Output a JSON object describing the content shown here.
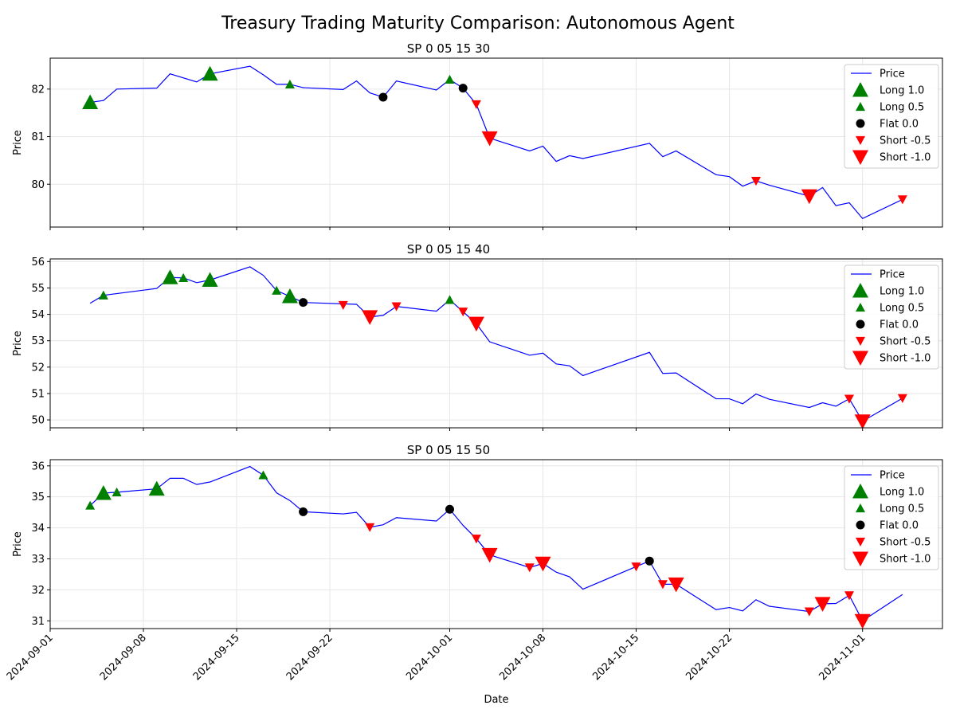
{
  "figure": {
    "title": "Treasury Trading Maturity Comparison: Autonomous Agent",
    "xlabel": "Date",
    "ylabel": "Price"
  },
  "legend_labels": [
    "Price",
    "Long 1.0",
    "Long 0.5",
    "Flat 0.0",
    "Short -0.5",
    "Short -1.0"
  ],
  "colors": {
    "price": "#0000ff",
    "long": "#008000",
    "flat": "#000000",
    "short": "#ff0000",
    "grid": "#e6e6e6"
  },
  "x_ticks": [
    "2024-09-01",
    "2024-09-08",
    "2024-09-15",
    "2024-09-22",
    "2024-10-01",
    "2024-10-08",
    "2024-10-15",
    "2024-10-22",
    "2024-11-01"
  ],
  "chart_data": [
    {
      "type": "line",
      "title": "SP 0 05 15 30",
      "xlabel": "",
      "ylabel": "Price",
      "ylim": [
        79.1,
        82.65
      ],
      "yticks": [
        80,
        81,
        82
      ],
      "grid": true,
      "legend": "top-right",
      "series": [
        {
          "name": "Price",
          "type": "line",
          "points": [
            [
              "2024-09-04",
              81.72
            ],
            [
              "2024-09-05",
              81.76
            ],
            [
              "2024-09-06",
              82.0
            ],
            [
              "2024-09-09",
              82.02
            ],
            [
              "2024-09-10",
              82.32
            ],
            [
              "2024-09-12",
              82.15
            ],
            [
              "2024-09-13",
              82.32
            ],
            [
              "2024-09-16",
              82.48
            ],
            [
              "2024-09-17",
              82.3
            ],
            [
              "2024-09-18",
              82.1
            ],
            [
              "2024-09-19",
              82.1
            ],
            [
              "2024-09-20",
              82.03
            ],
            [
              "2024-09-23",
              81.99
            ],
            [
              "2024-09-24",
              82.17
            ],
            [
              "2024-09-25",
              81.92
            ],
            [
              "2024-09-26",
              81.83
            ],
            [
              "2024-09-27",
              82.17
            ],
            [
              "2024-09-30",
              81.98
            ],
            [
              "2024-10-01",
              82.2
            ],
            [
              "2024-10-02",
              82.02
            ],
            [
              "2024-10-03",
              81.68
            ],
            [
              "2024-10-04",
              80.97
            ],
            [
              "2024-10-07",
              80.7
            ],
            [
              "2024-10-08",
              80.8
            ],
            [
              "2024-10-09",
              80.48
            ],
            [
              "2024-10-10",
              80.6
            ],
            [
              "2024-10-11",
              80.54
            ],
            [
              "2024-10-16",
              80.86
            ],
            [
              "2024-10-17",
              80.58
            ],
            [
              "2024-10-18",
              80.7
            ],
            [
              "2024-10-21",
              80.2
            ],
            [
              "2024-10-22",
              80.16
            ],
            [
              "2024-10-23",
              79.96
            ],
            [
              "2024-10-24",
              80.07
            ],
            [
              "2024-10-25",
              79.98
            ],
            [
              "2024-10-28",
              79.75
            ],
            [
              "2024-10-29",
              79.93
            ],
            [
              "2024-10-30",
              79.55
            ],
            [
              "2024-10-31",
              79.61
            ],
            [
              "2024-11-01",
              79.28
            ],
            [
              "2024-11-04",
              79.68
            ]
          ]
        },
        {
          "name": "Long 1.0",
          "type": "marker",
          "points": [
            [
              "2024-09-04",
              81.72
            ],
            [
              "2024-09-13",
              82.32
            ]
          ]
        },
        {
          "name": "Long 0.5",
          "type": "marker",
          "points": [
            [
              "2024-09-19",
              82.1
            ],
            [
              "2024-10-01",
              82.2
            ]
          ]
        },
        {
          "name": "Flat 0.0",
          "type": "marker",
          "points": [
            [
              "2024-09-26",
              81.83
            ],
            [
              "2024-10-02",
              82.02
            ]
          ]
        },
        {
          "name": "Short -0.5",
          "type": "marker",
          "points": [
            [
              "2024-10-03",
              81.68
            ],
            [
              "2024-10-24",
              80.07
            ],
            [
              "2024-11-04",
              79.68
            ]
          ]
        },
        {
          "name": "Short -1.0",
          "type": "marker",
          "points": [
            [
              "2024-10-04",
              80.97
            ],
            [
              "2024-10-28",
              79.75
            ]
          ]
        }
      ]
    },
    {
      "type": "line",
      "title": "SP 0 05 15 40",
      "xlabel": "",
      "ylabel": "Price",
      "ylim": [
        49.7,
        56.1
      ],
      "yticks": [
        50,
        51,
        52,
        53,
        54,
        55,
        56
      ],
      "grid": true,
      "legend": "top-right",
      "series": [
        {
          "name": "Price",
          "type": "line",
          "points": [
            [
              "2024-09-04",
              54.42
            ],
            [
              "2024-09-05",
              54.72
            ],
            [
              "2024-09-09",
              54.98
            ],
            [
              "2024-09-10",
              55.4
            ],
            [
              "2024-09-11",
              55.38
            ],
            [
              "2024-09-12",
              55.2
            ],
            [
              "2024-09-13",
              55.3
            ],
            [
              "2024-09-16",
              55.8
            ],
            [
              "2024-09-17",
              55.48
            ],
            [
              "2024-09-18",
              54.9
            ],
            [
              "2024-09-19",
              54.68
            ],
            [
              "2024-09-20",
              54.45
            ],
            [
              "2024-09-24",
              54.38
            ],
            [
              "2024-09-25",
              53.9
            ],
            [
              "2024-09-26",
              53.96
            ],
            [
              "2024-09-27",
              54.3
            ],
            [
              "2024-09-30",
              54.12
            ],
            [
              "2024-10-01",
              54.55
            ],
            [
              "2024-10-02",
              54.1
            ],
            [
              "2024-10-03",
              53.65
            ],
            [
              "2024-10-04",
              52.96
            ],
            [
              "2024-10-07",
              52.45
            ],
            [
              "2024-10-08",
              52.53
            ],
            [
              "2024-10-09",
              52.12
            ],
            [
              "2024-10-10",
              52.05
            ],
            [
              "2024-10-11",
              51.68
            ],
            [
              "2024-10-16",
              52.56
            ],
            [
              "2024-10-17",
              51.76
            ],
            [
              "2024-10-18",
              51.78
            ],
            [
              "2024-10-21",
              50.8
            ],
            [
              "2024-10-22",
              50.8
            ],
            [
              "2024-10-23",
              50.61
            ],
            [
              "2024-10-24",
              50.98
            ],
            [
              "2024-10-25",
              50.78
            ],
            [
              "2024-10-28",
              50.47
            ],
            [
              "2024-10-29",
              50.65
            ],
            [
              "2024-10-30",
              50.52
            ],
            [
              "2024-10-31",
              50.8
            ],
            [
              "2024-11-01",
              49.95
            ],
            [
              "2024-11-04",
              50.82
            ]
          ]
        },
        {
          "name": "Long 1.0",
          "type": "marker",
          "points": [
            [
              "2024-09-10",
              55.4
            ],
            [
              "2024-09-13",
              55.3
            ],
            [
              "2024-09-19",
              54.68
            ]
          ]
        },
        {
          "name": "Long 0.5",
          "type": "marker",
          "points": [
            [
              "2024-09-05",
              54.72
            ],
            [
              "2024-09-11",
              55.38
            ],
            [
              "2024-09-18",
              54.9
            ],
            [
              "2024-10-01",
              54.55
            ]
          ]
        },
        {
          "name": "Flat 0.0",
          "type": "marker",
          "points": [
            [
              "2024-09-20",
              54.45
            ]
          ]
        },
        {
          "name": "Short -0.5",
          "type": "marker",
          "points": [
            [
              "2024-09-23",
              54.35
            ],
            [
              "2024-09-27",
              54.3
            ],
            [
              "2024-10-02",
              54.1
            ],
            [
              "2024-10-31",
              50.8
            ],
            [
              "2024-11-04",
              50.82
            ]
          ]
        },
        {
          "name": "Short -1.0",
          "type": "marker",
          "points": [
            [
              "2024-09-25",
              53.9
            ],
            [
              "2024-10-03",
              53.65
            ],
            [
              "2024-11-01",
              49.95
            ]
          ]
        }
      ]
    },
    {
      "type": "line",
      "title": "SP 0 05 15 50",
      "xlabel": "Date",
      "ylabel": "Price",
      "ylim": [
        30.75,
        36.2
      ],
      "yticks": [
        31,
        32,
        33,
        34,
        35,
        36
      ],
      "grid": true,
      "legend": "top-right",
      "series": [
        {
          "name": "Price",
          "type": "line",
          "points": [
            [
              "2024-09-04",
              34.72
            ],
            [
              "2024-09-05",
              35.12
            ],
            [
              "2024-09-06",
              35.15
            ],
            [
              "2024-09-09",
              35.26
            ],
            [
              "2024-09-10",
              35.6
            ],
            [
              "2024-09-11",
              35.6
            ],
            [
              "2024-09-12",
              35.4
            ],
            [
              "2024-09-13",
              35.48
            ],
            [
              "2024-09-16",
              35.98
            ],
            [
              "2024-09-17",
              35.7
            ],
            [
              "2024-09-18",
              35.13
            ],
            [
              "2024-09-19",
              34.88
            ],
            [
              "2024-09-20",
              34.52
            ],
            [
              "2024-09-23",
              34.45
            ],
            [
              "2024-09-24",
              34.5
            ],
            [
              "2024-09-25",
              34.02
            ],
            [
              "2024-09-26",
              34.1
            ],
            [
              "2024-09-27",
              34.33
            ],
            [
              "2024-09-30",
              34.22
            ],
            [
              "2024-10-01",
              34.6
            ],
            [
              "2024-10-02",
              34.08
            ],
            [
              "2024-10-03",
              33.65
            ],
            [
              "2024-10-04",
              33.13
            ],
            [
              "2024-10-07",
              32.72
            ],
            [
              "2024-10-08",
              32.85
            ],
            [
              "2024-10-09",
              32.57
            ],
            [
              "2024-10-10",
              32.42
            ],
            [
              "2024-10-11",
              32.02
            ],
            [
              "2024-10-15",
              32.75
            ],
            [
              "2024-10-16",
              32.93
            ],
            [
              "2024-10-17",
              32.18
            ],
            [
              "2024-10-18",
              32.18
            ],
            [
              "2024-10-21",
              31.36
            ],
            [
              "2024-10-22",
              31.43
            ],
            [
              "2024-10-23",
              31.32
            ],
            [
              "2024-10-24",
              31.68
            ],
            [
              "2024-10-25",
              31.47
            ],
            [
              "2024-10-28",
              31.3
            ],
            [
              "2024-10-29",
              31.55
            ],
            [
              "2024-10-30",
              31.56
            ],
            [
              "2024-10-31",
              31.82
            ],
            [
              "2024-11-01",
              31.0
            ],
            [
              "2024-11-04",
              31.85
            ]
          ]
        },
        {
          "name": "Long 1.0",
          "type": "marker",
          "points": [
            [
              "2024-09-05",
              35.12
            ],
            [
              "2024-09-09",
              35.26
            ]
          ]
        },
        {
          "name": "Long 0.5",
          "type": "marker",
          "points": [
            [
              "2024-09-04",
              34.72
            ],
            [
              "2024-09-06",
              35.15
            ],
            [
              "2024-09-17",
              35.7
            ]
          ]
        },
        {
          "name": "Flat 0.0",
          "type": "marker",
          "points": [
            [
              "2024-09-20",
              34.52
            ],
            [
              "2024-10-01",
              34.6
            ],
            [
              "2024-10-16",
              32.93
            ]
          ]
        },
        {
          "name": "Short -0.5",
          "type": "marker",
          "points": [
            [
              "2024-09-25",
              34.02
            ],
            [
              "2024-10-03",
              33.65
            ],
            [
              "2024-10-07",
              32.72
            ],
            [
              "2024-10-15",
              32.75
            ],
            [
              "2024-10-17",
              32.18
            ],
            [
              "2024-10-28",
              31.3
            ],
            [
              "2024-10-31",
              31.82
            ]
          ]
        },
        {
          "name": "Short -1.0",
          "type": "marker",
          "points": [
            [
              "2024-10-04",
              33.13
            ],
            [
              "2024-10-08",
              32.85
            ],
            [
              "2024-10-18",
              32.18
            ],
            [
              "2024-10-29",
              31.55
            ],
            [
              "2024-11-01",
              31.0
            ]
          ]
        }
      ]
    }
  ]
}
